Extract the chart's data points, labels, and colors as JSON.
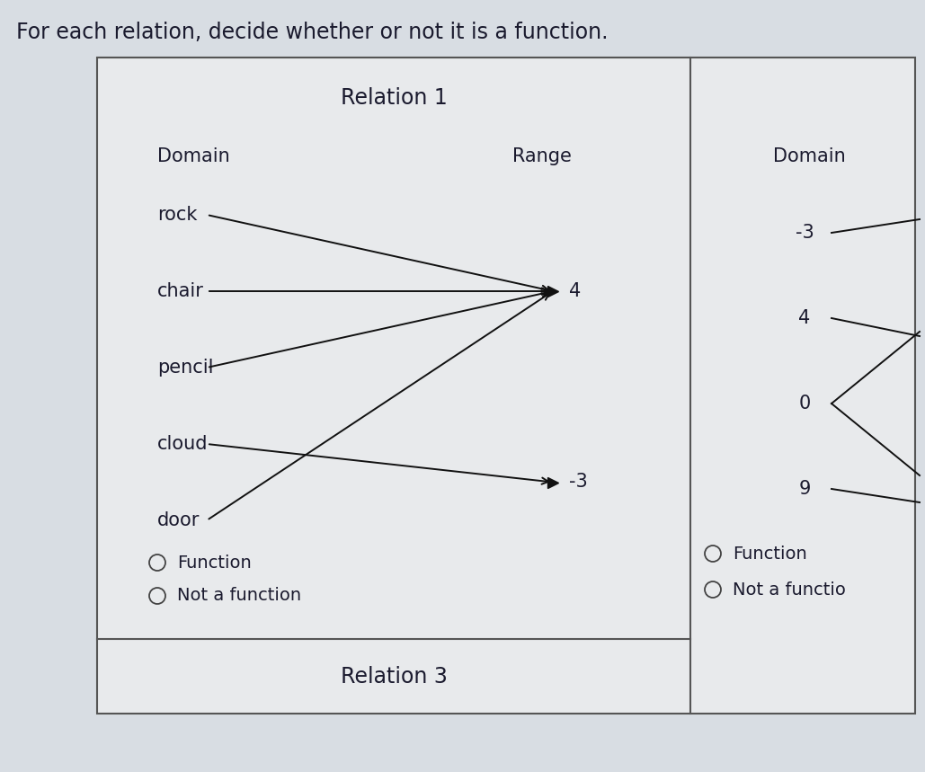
{
  "title": "For each relation, decide whether or not it is a function.",
  "title_fontsize": 17,
  "bg_color": "#d8dde3",
  "cell_bg": "#f0f2f4",
  "text_color": "#1a1a2e",
  "grid_color": "#555555",
  "arrow_color": "#111111",
  "relation1_title": "Relation 1",
  "relation1_domain_label": "Domain",
  "relation1_range_label": "Range",
  "relation1_domain": [
    "rock",
    "chair",
    "pencil",
    "cloud",
    "door"
  ],
  "relation1_range_labels": [
    "4",
    "-3"
  ],
  "relation1_function_label": "Function",
  "relation1_notfunction_label": "Not a function",
  "relation2_domain_label": "Domain",
  "relation2_domain": [
    "-3",
    "4",
    "0",
    "9"
  ],
  "relation2_function_label": "Function",
  "relation2_notfunction_label": "Not a functio",
  "relation3_title": "Relation 3",
  "label_fontsize": 15,
  "item_fontsize": 15,
  "radio_fontsize": 14,
  "title_cell_fontsize": 17
}
